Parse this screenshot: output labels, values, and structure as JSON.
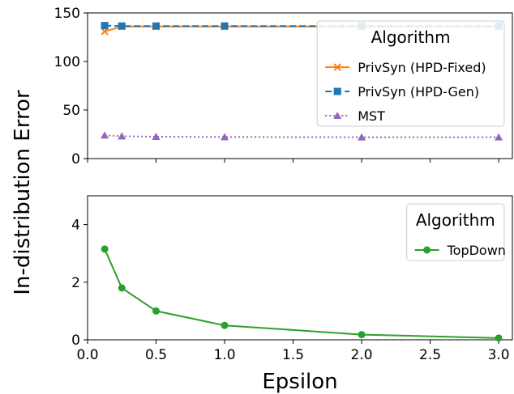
{
  "figure": {
    "ylabel": "In-distribution Error",
    "xlabel": "Epsilon"
  },
  "chart_data": [
    {
      "type": "line",
      "title": "",
      "xlim": [
        0.0,
        3.1
      ],
      "ylim": [
        0,
        150
      ],
      "xticks": [
        "",
        "",
        "",
        "",
        "",
        "",
        ""
      ],
      "yticks": [
        "0",
        "50",
        "100",
        "150"
      ],
      "legend": {
        "title": "Algorithm",
        "placement": "upper-right"
      },
      "x": [
        0.125,
        0.25,
        0.5,
        1.0,
        2.0,
        3.0
      ],
      "series": [
        {
          "name": "PrivSyn (HPD-Fixed)",
          "color": "#ff7f0e",
          "dash": "solid",
          "marker": "x",
          "values": [
            131,
            136,
            136,
            136,
            136,
            136
          ]
        },
        {
          "name": "PrivSyn (HPD-Gen)",
          "color": "#1f77b4",
          "dash": "dashed",
          "marker": "square",
          "values": [
            137,
            136.5,
            136.5,
            136.5,
            136.5,
            136.5
          ]
        },
        {
          "name": "MST",
          "color": "#9467bd",
          "dash": "dotted",
          "marker": "triangle",
          "values": [
            24,
            23,
            22.5,
            22.2,
            22.0,
            22.0
          ]
        }
      ]
    },
    {
      "type": "line",
      "title": "",
      "xlim": [
        0.0,
        3.1
      ],
      "ylim": [
        0,
        5
      ],
      "xticks": [
        "0.0",
        "0.5",
        "1.0",
        "1.5",
        "2.0",
        "2.5",
        "3.0"
      ],
      "yticks": [
        "0",
        "2",
        "4"
      ],
      "legend": {
        "title": "Algorithm",
        "placement": "upper-right"
      },
      "x": [
        0.125,
        0.25,
        0.5,
        1.0,
        2.0,
        3.0
      ],
      "series": [
        {
          "name": "TopDown",
          "color": "#2ca02c",
          "dash": "solid",
          "marker": "circle",
          "values": [
            3.15,
            1.8,
            1.0,
            0.5,
            0.18,
            0.06
          ]
        }
      ]
    }
  ]
}
